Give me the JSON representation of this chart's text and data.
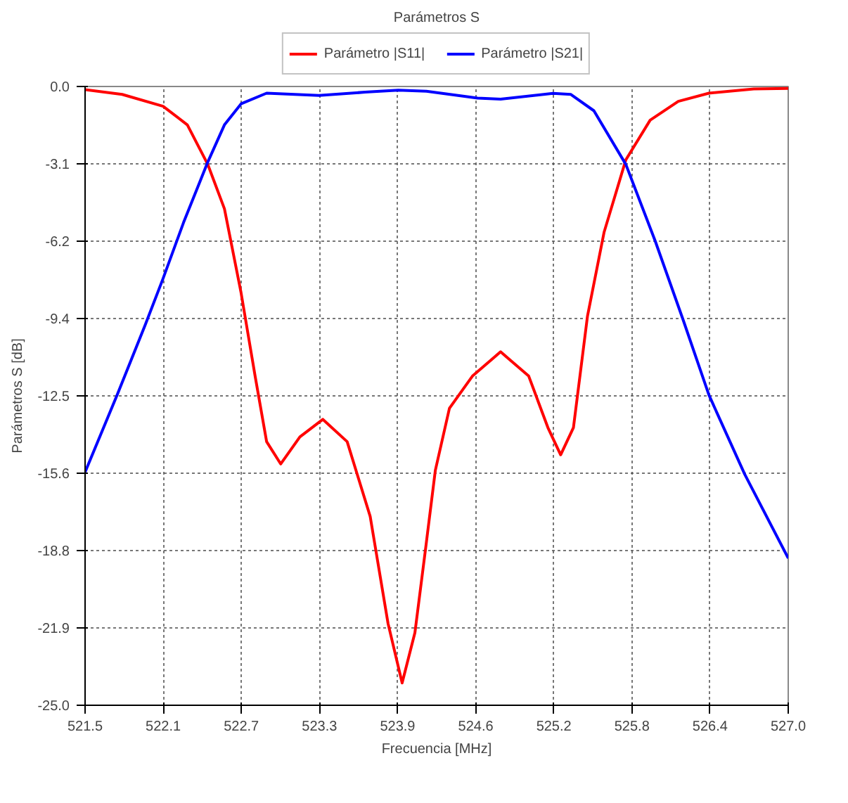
{
  "chart_data": {
    "type": "line",
    "title": "Parámetros S",
    "xlabel": "Frecuencia [MHz]",
    "ylabel": "Parámetros S [dB]",
    "xlim": [
      521.5,
      527.0
    ],
    "ylim": [
      -25.0,
      0.0
    ],
    "xticks": [
      521.5,
      {
        "value": 522.1111,
        "label": "522.1"
      },
      {
        "value": 522.7222,
        "label": "522.7"
      },
      {
        "value": 523.3333,
        "label": "523.3"
      },
      {
        "value": 523.9444,
        "label": "523.9"
      },
      {
        "value": 524.5556,
        "label": "524.6"
      },
      {
        "value": 525.1667,
        "label": "525.2"
      },
      {
        "value": 525.7778,
        "label": "525.8"
      },
      {
        "value": 526.3889,
        "label": "526.4"
      },
      {
        "value": 527.0,
        "label": "527.0"
      }
    ],
    "yticks": [
      {
        "value": 0,
        "label": "0.0"
      },
      {
        "value": -3.125,
        "label": "-3.1"
      },
      {
        "value": -6.25,
        "label": "-6.2"
      },
      {
        "value": -9.375,
        "label": "-9.4"
      },
      -12.5,
      {
        "value": -15.625,
        "label": "-15.6"
      },
      {
        "value": -18.75,
        "label": "-18.8"
      },
      {
        "value": -21.875,
        "label": "-21.9"
      },
      {
        "value": -25,
        "label": "-25.0"
      }
    ],
    "grid": true,
    "legend": "top",
    "line_style": "solid",
    "series": [
      {
        "name": "Parámetro |S11|",
        "color": "#ff0000",
        "x": [
          521.5,
          521.79,
          522.11,
          522.3,
          522.46,
          522.59,
          522.72,
          522.83,
          522.92,
          523.03,
          523.18,
          523.36,
          523.55,
          523.73,
          523.87,
          523.98,
          524.08,
          524.17,
          524.24,
          524.35,
          524.53,
          524.75,
          524.97,
          525.12,
          525.22,
          525.32,
          525.43,
          525.56,
          525.73,
          525.92,
          526.14,
          526.38,
          526.73,
          527.0
        ],
        "values": [
          -0.13,
          -0.32,
          -0.8,
          -1.55,
          -3.15,
          -4.94,
          -8.33,
          -11.7,
          -14.35,
          -15.25,
          -14.16,
          -13.45,
          -14.35,
          -17.37,
          -21.7,
          -24.1,
          -22.07,
          -18.4,
          -15.5,
          -13.0,
          -11.7,
          -10.72,
          -11.7,
          -13.78,
          -14.88,
          -13.78,
          -9.27,
          -5.88,
          -2.96,
          -1.36,
          -0.6,
          -0.27,
          -0.1,
          -0.08
        ]
      },
      {
        "name": "Parámetro |S21|",
        "color": "#0000ff",
        "x": [
          521.5,
          521.75,
          521.97,
          522.11,
          522.27,
          522.46,
          522.59,
          522.72,
          522.92,
          523.33,
          523.69,
          523.95,
          524.17,
          524.57,
          524.75,
          525.16,
          525.3,
          525.48,
          525.73,
          525.96,
          526.18,
          526.38,
          526.66,
          527.0
        ],
        "values": [
          -15.58,
          -12.47,
          -9.64,
          -7.76,
          -5.5,
          -3.05,
          -1.55,
          -0.7,
          -0.27,
          -0.36,
          -0.23,
          -0.15,
          -0.19,
          -0.47,
          -0.51,
          -0.28,
          -0.32,
          -0.98,
          -3.15,
          -6.25,
          -9.46,
          -12.47,
          -15.67,
          -19.06
        ]
      }
    ]
  }
}
